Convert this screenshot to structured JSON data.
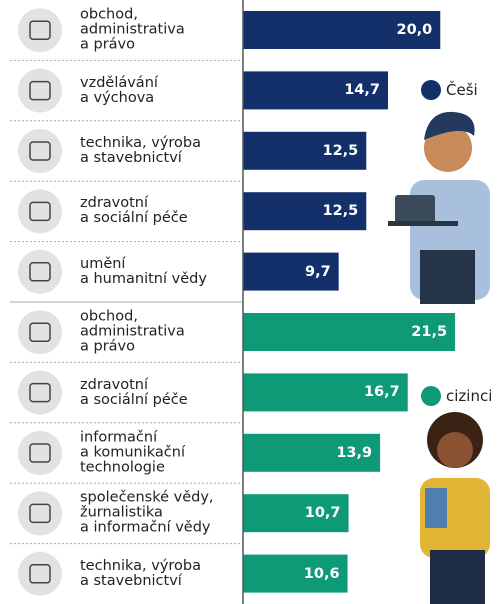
{
  "chart_data": {
    "type": "bar",
    "orientation": "horizontal",
    "xlim": [
      0,
      22
    ],
    "series": [
      {
        "name": "Češi",
        "color": "#13306a",
        "categories": [
          "obchod,\nadministrativa\na právo",
          "vzdělávání\na výchova",
          "technika, výroba\na stavebnictví",
          "zdravotní\na sociální péče",
          "umění\na humanitní vědy"
        ],
        "values": [
          20.0,
          14.7,
          12.5,
          12.5,
          9.7
        ],
        "value_labels": [
          "20,0",
          "14,7",
          "12,5",
          "12,5",
          "9,7"
        ]
      },
      {
        "name": "cizinci",
        "color": "#0e9a77",
        "categories": [
          "obchod,\nadministrativa\na právo",
          "zdravotní\na sociální péče",
          "informační\na komunikační\ntechnologie",
          "společenské vědy,\nžurnalistika\na informační vědy",
          "technika, výroba\na stavebnictví"
        ],
        "values": [
          21.5,
          16.7,
          13.9,
          10.7,
          10.6
        ],
        "value_labels": [
          "21,5",
          "16,7",
          "13,9",
          "10,7",
          "10,6"
        ]
      }
    ]
  }
}
